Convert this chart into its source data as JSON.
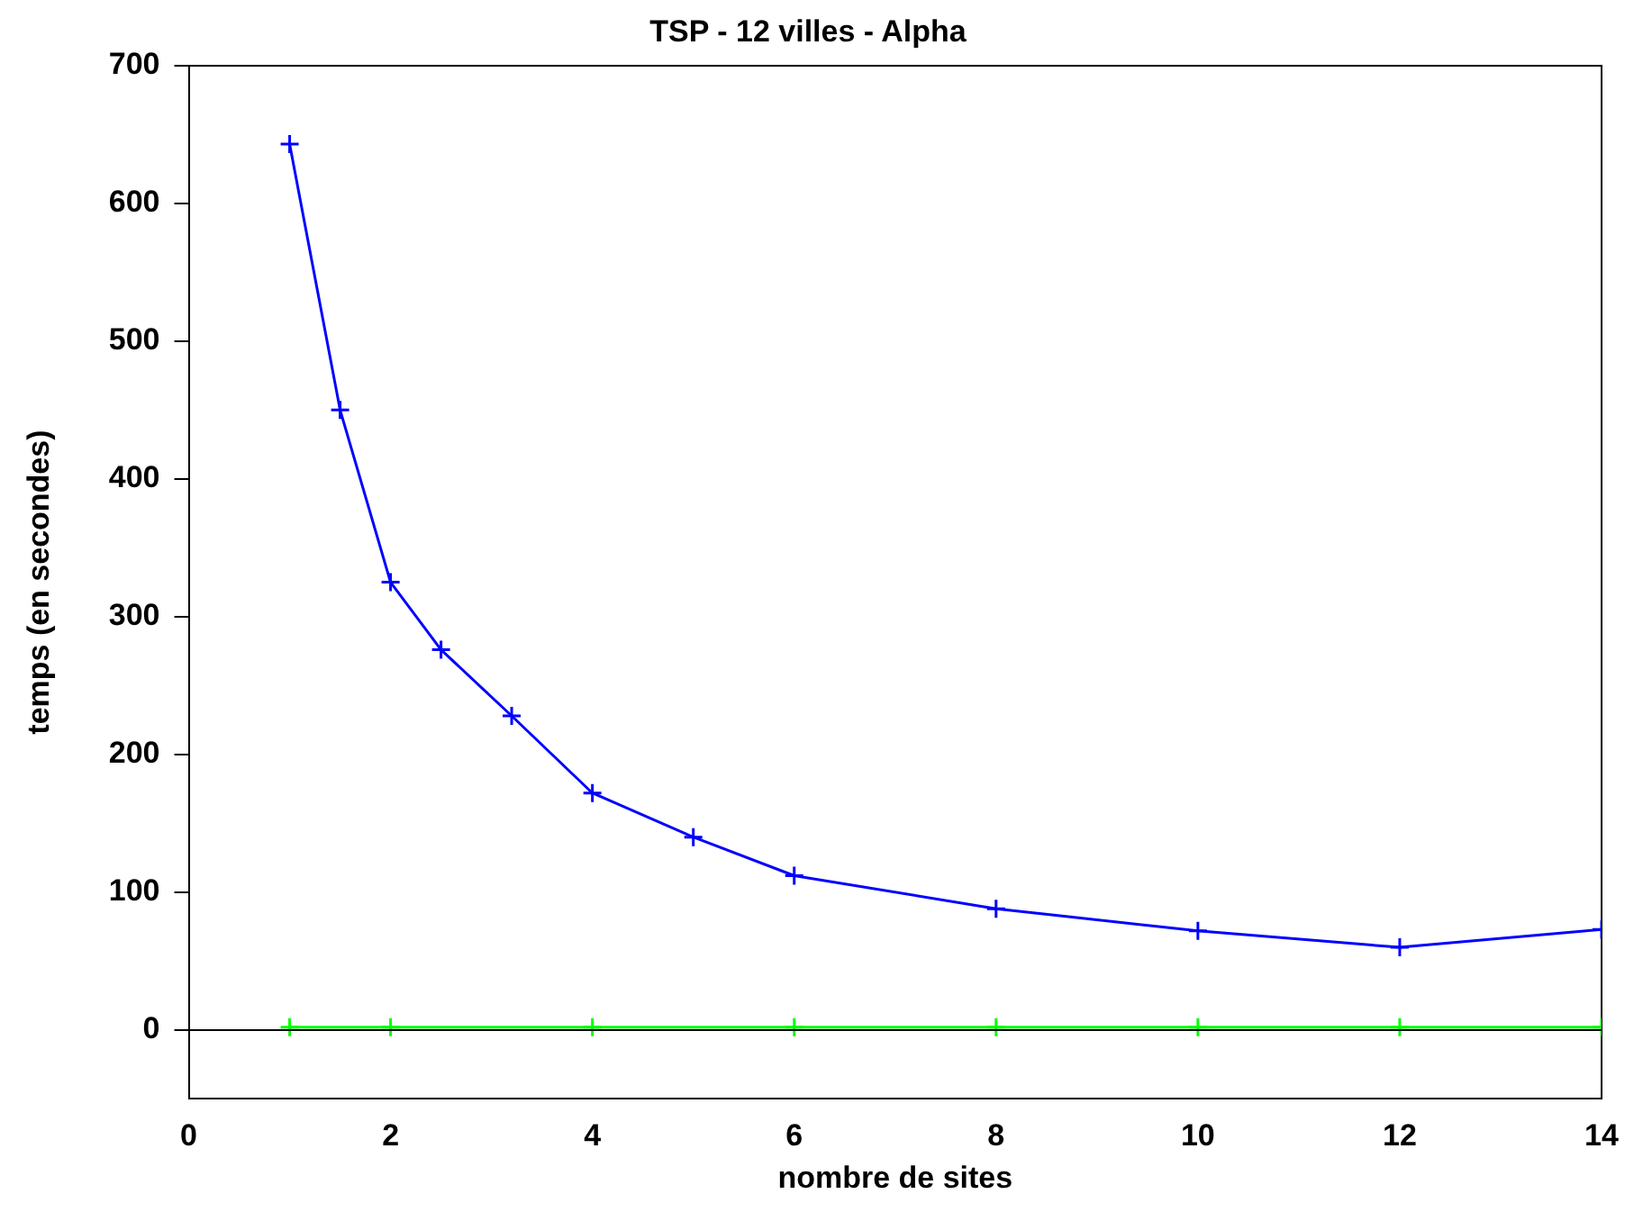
{
  "chart_data": {
    "type": "line",
    "title": "TSP - 12 villes - Alpha",
    "xlabel": "nombre de sites",
    "ylabel": "temps (en secondes)",
    "xlim": [
      0,
      14
    ],
    "xticks": [
      0,
      2,
      4,
      6,
      8,
      10,
      12,
      14
    ],
    "ylim": [
      -50,
      700
    ],
    "yticks": [
      0,
      100,
      200,
      300,
      400,
      500,
      600,
      700
    ],
    "grid": false,
    "legend": false,
    "marker": "cross",
    "line_style": "solid",
    "ref_lines": [
      {
        "axis": "y",
        "value": 0,
        "color": "#000000"
      }
    ],
    "series": [
      {
        "color": "#00ff00",
        "x": [
          1,
          2,
          4,
          6,
          8,
          10,
          12,
          14
        ],
        "values": [
          2,
          2,
          2,
          2,
          2,
          2,
          2,
          2
        ]
      },
      {
        "color": "#0000ff",
        "x": [
          1,
          1.5,
          2,
          2.5,
          3.2,
          4,
          5,
          6,
          8,
          10,
          12,
          14
        ],
        "values": [
          643,
          450,
          325,
          276,
          228,
          172,
          140,
          112,
          88,
          72,
          60,
          73
        ]
      }
    ]
  }
}
